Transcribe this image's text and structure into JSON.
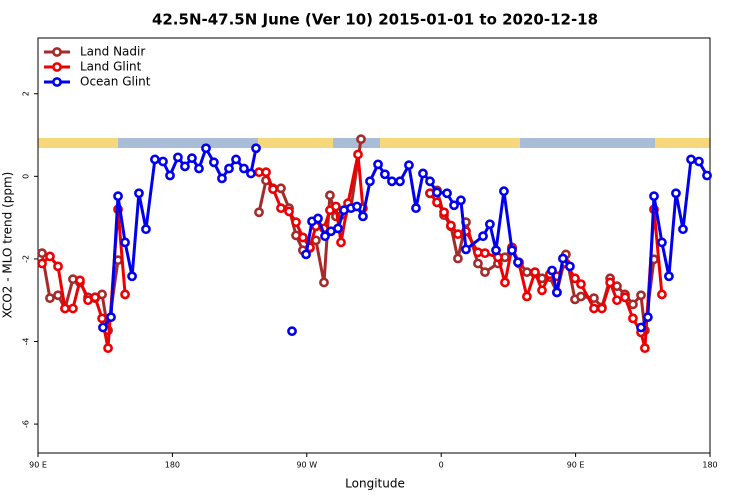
{
  "chart_data": {
    "type": "line",
    "title": "42.5N-47.5N June (Ver 10)   2015-01-01 to 2020-12-18",
    "x_label": "Longitude",
    "y_label": "XCO2 - MLO trend (ppm)",
    "xlim": [
      90,
      540
    ],
    "xticks": [
      {
        "value": 90,
        "label": "90 E"
      },
      {
        "value": 180,
        "label": "180"
      },
      {
        "value": 270,
        "label": "90 W"
      },
      {
        "value": 360,
        "label": "0"
      },
      {
        "value": 450,
        "label": "90 E"
      },
      {
        "value": 540,
        "label": "180"
      }
    ],
    "ylim": [
      -6.7,
      3.35
    ],
    "yticks": [
      -6,
      -4,
      -2,
      0,
      2
    ],
    "legend": "top-left",
    "series": [
      {
        "name": "Land Nadir",
        "color": "#a52a2a",
        "x": [
          92.7,
          98.0,
          103.4,
          108.1,
          113.4,
          118.1,
          123.5,
          128.2,
          132.9,
          136.9,
          143.6,
          null,
          238.0,
          242.7,
          247.4,
          252.7,
          258.1,
          262.8,
          267.4,
          272.1,
          276.1,
          281.5,
          285.5,
          289.5,
          294.2,
          299.6,
          306.3,
          null,
          352.5,
          357.2,
          361.9,
          366.5,
          371.2,
          376.6,
          384.6,
          389.3,
          398.0,
          402.7,
          407.4,
          412.1,
          417.4,
          422.8,
          427.5,
          432.8,
          437.5,
          443.5,
          449.6,
          453.6,
          462.3,
          467.6,
          473.1,
          477.7,
          483.1,
          488.4,
          493.8,
          496.4,
          502.5
        ],
        "values": [
          -1.86,
          -2.95,
          -2.88,
          -3.2,
          -2.49,
          -2.57,
          -2.93,
          -2.95,
          -2.86,
          -3.73,
          -2.03,
          null,
          -0.87,
          -0.1,
          -0.29,
          -0.29,
          -0.77,
          -1.43,
          -1.79,
          -1.74,
          -1.55,
          -2.57,
          -0.46,
          -0.97,
          -0.92,
          -0.75,
          0.9,
          null,
          -0.41,
          -0.34,
          -0.94,
          -1.21,
          -1.99,
          -1.11,
          -2.11,
          -2.32,
          -2.11,
          -1.96,
          -1.74,
          -2.08,
          -2.32,
          -2.35,
          -2.47,
          -2.44,
          -2.81,
          -1.89,
          -2.98,
          -2.91,
          -2.95,
          -3.17,
          -2.47,
          -2.66,
          -2.86,
          -3.1,
          -2.88,
          -3.73,
          -2.01
        ]
      },
      {
        "name": "Land Glint",
        "color": "#ee0000",
        "x": [
          92.7,
          98.0,
          103.4,
          108.1,
          113.4,
          118.1,
          123.5,
          128.2,
          132.9,
          136.9,
          143.6,
          148.3,
          null,
          238.0,
          242.7,
          247.4,
          252.7,
          258.1,
          262.8,
          267.4,
          272.1,
          276.1,
          281.5,
          285.5,
          289.5,
          292.9,
          297.6,
          304.3,
          307.6,
          null,
          352.5,
          357.2,
          361.9,
          366.5,
          371.2,
          376.6,
          384.6,
          389.3,
          398.0,
          402.7,
          407.4,
          412.1,
          417.4,
          422.8,
          427.5,
          432.8,
          437.5,
          443.5,
          449.6,
          453.6,
          462.3,
          467.6,
          473.1,
          477.7,
          483.1,
          488.4,
          493.8,
          496.4,
          502.5,
          507.8
        ],
        "values": [
          -2.11,
          -1.94,
          -2.18,
          -3.2,
          -3.2,
          -2.52,
          -3.0,
          -2.93,
          -3.44,
          -4.16,
          -0.8,
          -2.86,
          null,
          0.1,
          0.1,
          -0.31,
          -0.77,
          -0.85,
          -1.11,
          -1.48,
          -1.72,
          -1.21,
          -1.26,
          -0.82,
          -0.73,
          -1.6,
          -0.65,
          0.53,
          -0.77,
          null,
          -0.41,
          -0.63,
          -0.87,
          -1.19,
          -1.4,
          -1.33,
          -1.84,
          -1.86,
          -1.96,
          -2.57,
          -1.72,
          -2.11,
          -2.91,
          -2.32,
          -2.76,
          -2.37,
          -2.42,
          -2.11,
          -2.47,
          -2.61,
          -3.2,
          -3.2,
          -2.57,
          -3.0,
          -2.93,
          -3.44,
          -3.78,
          -4.16,
          -0.8,
          -2.86
        ]
      },
      {
        "name": "Ocean Glint",
        "color": "#0000ee",
        "x": [
          133.5,
          138.9,
          143.6,
          148.3,
          153.0,
          157.6,
          162.3,
          168.3,
          173.7,
          178.4,
          183.7,
          188.4,
          193.1,
          197.8,
          202.5,
          207.8,
          213.2,
          217.9,
          222.6,
          227.9,
          232.6,
          236.0,
          null,
          260.1,
          null,
          269.5,
          273.5,
          277.5,
          282.2,
          286.2,
          290.9,
          294.9,
          299.6,
          303.6,
          307.6,
          312.3,
          317.7,
          322.3,
          327.0,
          332.4,
          338.4,
          343.1,
          347.8,
          352.5,
          357.2,
          363.9,
          368.6,
          373.2,
          376.6,
          388.0,
          392.6,
          396.7,
          402.0,
          407.4,
          411.4,
          null,
          434.2,
          437.5,
          441.5,
          446.2,
          null,
          493.8,
          498.4,
          502.5,
          507.8,
          512.5,
          517.2,
          521.9,
          527.3,
          532.6,
          538.0
        ],
        "values": [
          -3.66,
          -3.41,
          -0.48,
          -1.6,
          -2.42,
          -0.41,
          -1.28,
          0.41,
          0.36,
          0.02,
          0.46,
          0.24,
          0.44,
          0.19,
          0.68,
          0.34,
          -0.05,
          0.19,
          0.41,
          0.19,
          0.07,
          0.68,
          null,
          -3.75,
          null,
          -1.89,
          -1.09,
          -1.02,
          -1.45,
          -1.33,
          -1.26,
          -0.82,
          -0.77,
          -0.73,
          -0.97,
          -0.12,
          0.29,
          0.05,
          -0.12,
          -0.12,
          0.27,
          -0.77,
          0.07,
          -0.12,
          -0.39,
          -0.41,
          -0.7,
          -0.58,
          -1.77,
          -1.45,
          -1.16,
          -1.79,
          -0.36,
          -1.79,
          -2.08,
          null,
          -2.28,
          -2.81,
          -1.99,
          -2.18,
          null,
          -3.66,
          -3.41,
          -0.48,
          -1.6,
          -2.42,
          -0.41,
          -1.28,
          0.41,
          0.36,
          0.02
        ]
      }
    ]
  }
}
